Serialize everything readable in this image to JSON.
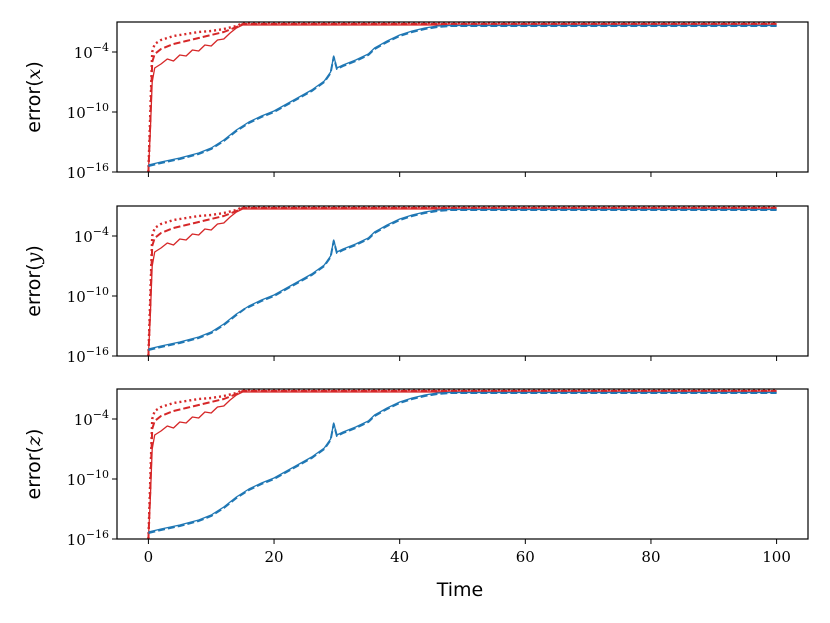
{
  "chart_data": {
    "type": "line",
    "xlabel": "Time",
    "xlim": [
      -5,
      105
    ],
    "xticks": [
      0,
      20,
      40,
      60,
      80,
      100
    ],
    "x_tick_labels": [
      "0",
      "20",
      "40",
      "60",
      "80",
      "100"
    ],
    "yscale": "log",
    "ylim_log10": [
      -16,
      -1
    ],
    "yticks": [
      {
        "log10": -4,
        "base": "10",
        "exp": "−4"
      },
      {
        "log10": -10,
        "base": "10",
        "exp": "−10"
      },
      {
        "log10": -16,
        "base": "10",
        "exp": "−16"
      }
    ],
    "colors": {
      "red": "#d62728",
      "blue": "#1f77b4"
    },
    "grid": false,
    "panels": [
      {
        "ylabel": "error(",
        "var": "x",
        "series": [
          {
            "color": "red",
            "dash": "dot",
            "x": [
              0,
              0.3,
              0.6,
              1,
              2,
              4,
              6,
              8,
              10,
              12,
              14,
              15,
              100
            ],
            "y": [
              -16,
              -10,
              -4,
              -3.2,
              -2.8,
              -2.4,
              -2.2,
              -2.0,
              -1.9,
              -1.7,
              -1.4,
              -1.1,
              -1.1
            ]
          },
          {
            "color": "red",
            "dash": "dash",
            "x": [
              0,
              0.3,
              0.6,
              1,
              2,
              4,
              6,
              8,
              10,
              12,
              14,
              15,
              100
            ],
            "y": [
              -16,
              -11,
              -5,
              -4.2,
              -3.7,
              -3.2,
              -2.9,
              -2.6,
              -2.3,
              -2.0,
              -1.5,
              -1.2,
              -1.2
            ]
          },
          {
            "color": "red",
            "dash": "solid",
            "x": [
              0,
              0.3,
              0.6,
              1,
              2,
              3,
              4,
              5,
              6,
              7,
              8,
              9,
              10,
              11,
              12,
              13,
              14,
              15,
              100
            ],
            "y": [
              -16,
              -12,
              -7,
              -5.6,
              -5.2,
              -4.7,
              -4.9,
              -4.3,
              -4.4,
              -3.8,
              -3.9,
              -3.3,
              -3.4,
              -2.8,
              -2.7,
              -2.1,
              -1.6,
              -1.3,
              -1.3
            ]
          },
          {
            "color": "blue",
            "dash": "solid",
            "x": [
              0,
              2,
              5,
              8,
              10,
              12,
              14,
              16,
              18,
              20,
              22,
              24,
              26,
              28,
              29,
              29.5,
              30,
              31,
              33,
              35,
              36,
              38,
              40,
              42,
              44,
              46,
              48,
              100
            ],
            "y": [
              -15.3,
              -15.0,
              -14.6,
              -14.1,
              -13.6,
              -12.8,
              -11.8,
              -11.0,
              -10.4,
              -9.9,
              -9.2,
              -8.5,
              -7.8,
              -6.9,
              -6.0,
              -4.4,
              -5.6,
              -5.3,
              -4.8,
              -4.2,
              -3.6,
              -2.9,
              -2.3,
              -1.9,
              -1.6,
              -1.4,
              -1.35,
              -1.35
            ]
          },
          {
            "color": "blue",
            "dash": "dash",
            "x": [
              0,
              2,
              5,
              8,
              10,
              12,
              14,
              16,
              18,
              20,
              22,
              24,
              26,
              28,
              29,
              29.5,
              30,
              31,
              33,
              35,
              36,
              38,
              40,
              42,
              44,
              46,
              48,
              100
            ],
            "y": [
              -15.4,
              -15.1,
              -14.7,
              -14.2,
              -13.7,
              -12.9,
              -11.9,
              -11.1,
              -10.5,
              -10.0,
              -9.3,
              -8.6,
              -7.9,
              -7.0,
              -6.1,
              -4.5,
              -5.7,
              -5.4,
              -4.9,
              -4.3,
              -3.7,
              -3.0,
              -2.4,
              -2.0,
              -1.7,
              -1.5,
              -1.4,
              -1.4
            ]
          }
        ]
      },
      {
        "ylabel": "error(",
        "var": "y",
        "series": [
          {
            "color": "red",
            "dash": "dot",
            "x": [
              0,
              0.3,
              0.6,
              1,
              2,
              4,
              6,
              8,
              10,
              12,
              14,
              15,
              100
            ],
            "y": [
              -16,
              -10,
              -4,
              -3.2,
              -2.8,
              -2.4,
              -2.2,
              -2.0,
              -1.9,
              -1.7,
              -1.4,
              -1.1,
              -1.1
            ]
          },
          {
            "color": "red",
            "dash": "dash",
            "x": [
              0,
              0.3,
              0.6,
              1,
              2,
              4,
              6,
              8,
              10,
              12,
              14,
              15,
              100
            ],
            "y": [
              -16,
              -11,
              -5,
              -4.2,
              -3.7,
              -3.2,
              -2.9,
              -2.6,
              -2.3,
              -2.0,
              -1.5,
              -1.2,
              -1.2
            ]
          },
          {
            "color": "red",
            "dash": "solid",
            "x": [
              0,
              0.3,
              0.6,
              1,
              2,
              3,
              4,
              5,
              6,
              7,
              8,
              9,
              10,
              11,
              12,
              13,
              14,
              15,
              100
            ],
            "y": [
              -16,
              -12,
              -7,
              -5.6,
              -5.2,
              -4.7,
              -4.9,
              -4.3,
              -4.4,
              -3.8,
              -3.9,
              -3.3,
              -3.4,
              -2.8,
              -2.7,
              -2.1,
              -1.6,
              -1.3,
              -1.3
            ]
          },
          {
            "color": "blue",
            "dash": "solid",
            "x": [
              0,
              2,
              5,
              8,
              10,
              12,
              14,
              16,
              18,
              20,
              22,
              24,
              26,
              28,
              29,
              29.5,
              30,
              31,
              33,
              35,
              36,
              38,
              40,
              42,
              44,
              46,
              48,
              100
            ],
            "y": [
              -15.3,
              -15.0,
              -14.6,
              -14.1,
              -13.6,
              -12.8,
              -11.8,
              -11.0,
              -10.4,
              -9.9,
              -9.2,
              -8.5,
              -7.8,
              -6.9,
              -6.0,
              -4.4,
              -5.6,
              -5.3,
              -4.8,
              -4.2,
              -3.6,
              -2.9,
              -2.3,
              -1.9,
              -1.6,
              -1.4,
              -1.35,
              -1.35
            ]
          },
          {
            "color": "blue",
            "dash": "dash",
            "x": [
              0,
              2,
              5,
              8,
              10,
              12,
              14,
              15.5,
              16,
              18,
              20,
              22,
              24,
              26,
              28,
              29,
              29.5,
              30,
              31,
              33,
              35,
              36,
              38,
              40,
              42,
              44,
              46,
              48,
              100
            ],
            "y": [
              -15.4,
              -15.1,
              -14.7,
              -14.2,
              -13.7,
              -12.9,
              -11.9,
              -11.2,
              -11.1,
              -10.5,
              -10.0,
              -9.3,
              -8.6,
              -7.9,
              -7.0,
              -6.1,
              -4.5,
              -5.7,
              -5.4,
              -4.9,
              -4.3,
              -3.7,
              -3.0,
              -2.4,
              -2.0,
              -1.7,
              -1.5,
              -1.4,
              -1.4
            ]
          }
        ]
      },
      {
        "ylabel": "error(",
        "var": "z",
        "series": [
          {
            "color": "red",
            "dash": "dot",
            "x": [
              0,
              0.3,
              0.6,
              1,
              2,
              4,
              6,
              8,
              10,
              12,
              14,
              15,
              100
            ],
            "y": [
              -16,
              -10,
              -4,
              -3.2,
              -2.8,
              -2.4,
              -2.2,
              -2.0,
              -1.9,
              -1.7,
              -1.4,
              -1.1,
              -1.1
            ]
          },
          {
            "color": "red",
            "dash": "dash",
            "x": [
              0,
              0.3,
              0.6,
              1,
              2,
              4,
              6,
              8,
              10,
              12,
              14,
              15,
              100
            ],
            "y": [
              -16,
              -11,
              -5,
              -4.2,
              -3.7,
              -3.2,
              -2.9,
              -2.6,
              -2.3,
              -2.0,
              -1.5,
              -1.2,
              -1.2
            ]
          },
          {
            "color": "red",
            "dash": "solid",
            "x": [
              0,
              0.3,
              0.6,
              1,
              2,
              3,
              4,
              5,
              6,
              7,
              8,
              9,
              10,
              11,
              12,
              13,
              14,
              15,
              100
            ],
            "y": [
              -16,
              -12,
              -7,
              -5.6,
              -5.2,
              -4.7,
              -4.9,
              -4.3,
              -4.4,
              -3.8,
              -3.9,
              -3.3,
              -3.4,
              -2.8,
              -2.7,
              -2.1,
              -1.6,
              -1.3,
              -1.3
            ]
          },
          {
            "color": "blue",
            "dash": "solid",
            "x": [
              0,
              2,
              5,
              8,
              10,
              12,
              14,
              16,
              18,
              20,
              22,
              24,
              26,
              28,
              29,
              29.5,
              30,
              31,
              33,
              35,
              36,
              38,
              40,
              42,
              44,
              46,
              48,
              100
            ],
            "y": [
              -15.3,
              -15.0,
              -14.6,
              -14.1,
              -13.6,
              -12.8,
              -11.8,
              -11.0,
              -10.4,
              -9.9,
              -9.2,
              -8.5,
              -7.8,
              -6.9,
              -6.0,
              -4.4,
              -5.6,
              -5.3,
              -4.8,
              -4.2,
              -3.6,
              -2.9,
              -2.3,
              -1.9,
              -1.6,
              -1.4,
              -1.35,
              -1.35
            ]
          },
          {
            "color": "blue",
            "dash": "dash",
            "x": [
              0,
              2,
              5,
              8,
              10,
              12,
              14,
              16,
              18,
              20,
              22,
              24,
              26,
              28,
              29,
              29.5,
              30,
              31,
              33,
              35,
              36,
              38,
              40,
              42,
              44,
              46,
              48,
              100
            ],
            "y": [
              -15.4,
              -15.1,
              -14.7,
              -14.2,
              -13.7,
              -12.9,
              -11.9,
              -11.1,
              -10.5,
              -10.0,
              -9.3,
              -8.6,
              -7.9,
              -7.0,
              -6.1,
              -4.5,
              -5.7,
              -5.4,
              -4.9,
              -4.3,
              -3.7,
              -3.0,
              -2.4,
              -2.0,
              -1.7,
              -1.5,
              -1.4,
              -1.4
            ]
          }
        ]
      }
    ]
  }
}
